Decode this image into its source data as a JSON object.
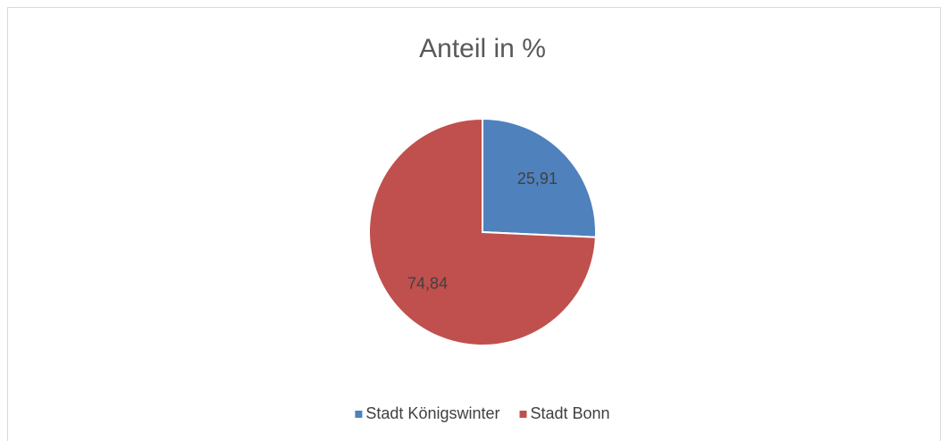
{
  "chart_data": {
    "type": "pie",
    "title": "Anteil in %",
    "categories": [
      "Stadt Königswinter",
      "Stadt Bonn"
    ],
    "values": [
      25.91,
      74.84
    ],
    "value_labels": [
      "25,91",
      "74,84"
    ],
    "colors": [
      "#4f81bd",
      "#c0504d"
    ],
    "legend": "bottom"
  }
}
